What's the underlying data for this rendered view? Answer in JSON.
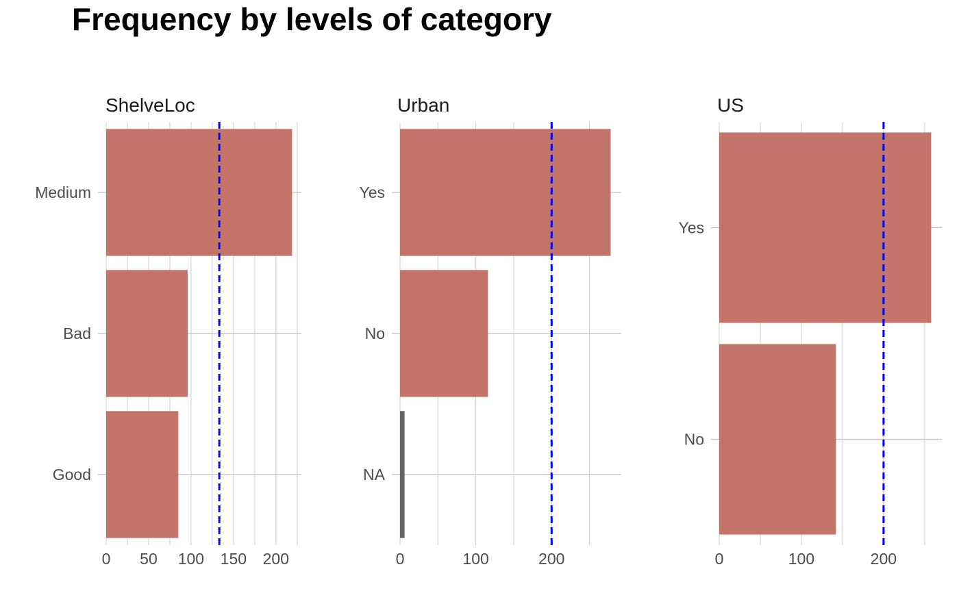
{
  "chart_data": {
    "type": "bar",
    "orientation": "horizontal",
    "title": "Frequency by levels of category",
    "bar_color": "#c4756a",
    "na_bar_color": "#666666",
    "reference_line_color": "#0000ff",
    "reference_line_style": "dashed",
    "grid": true,
    "facets": [
      {
        "name": "ShelveLoc",
        "categories": [
          "Medium",
          "Bad",
          "Good"
        ],
        "values": [
          219,
          96,
          85
        ],
        "reference_value": 133.3,
        "xlim": [
          0,
          230
        ],
        "x_ticks": [
          0,
          50,
          100,
          150,
          200
        ],
        "x_minor_ticks": [
          25,
          75,
          125,
          175,
          225
        ]
      },
      {
        "name": "Urban",
        "categories": [
          "Yes",
          "No",
          "NA"
        ],
        "values": [
          278,
          116,
          6
        ],
        "reference_value": 200,
        "xlim": [
          0,
          292
        ],
        "x_ticks": [
          0,
          100,
          200
        ],
        "x_minor_ticks": [
          50,
          150,
          250
        ]
      },
      {
        "name": "US",
        "categories": [
          "Yes",
          "No"
        ],
        "values": [
          258,
          142
        ],
        "reference_value": 200,
        "xlim": [
          0,
          271
        ],
        "x_ticks": [
          0,
          100,
          200
        ],
        "x_minor_ticks": [
          50,
          150,
          250
        ]
      }
    ]
  }
}
